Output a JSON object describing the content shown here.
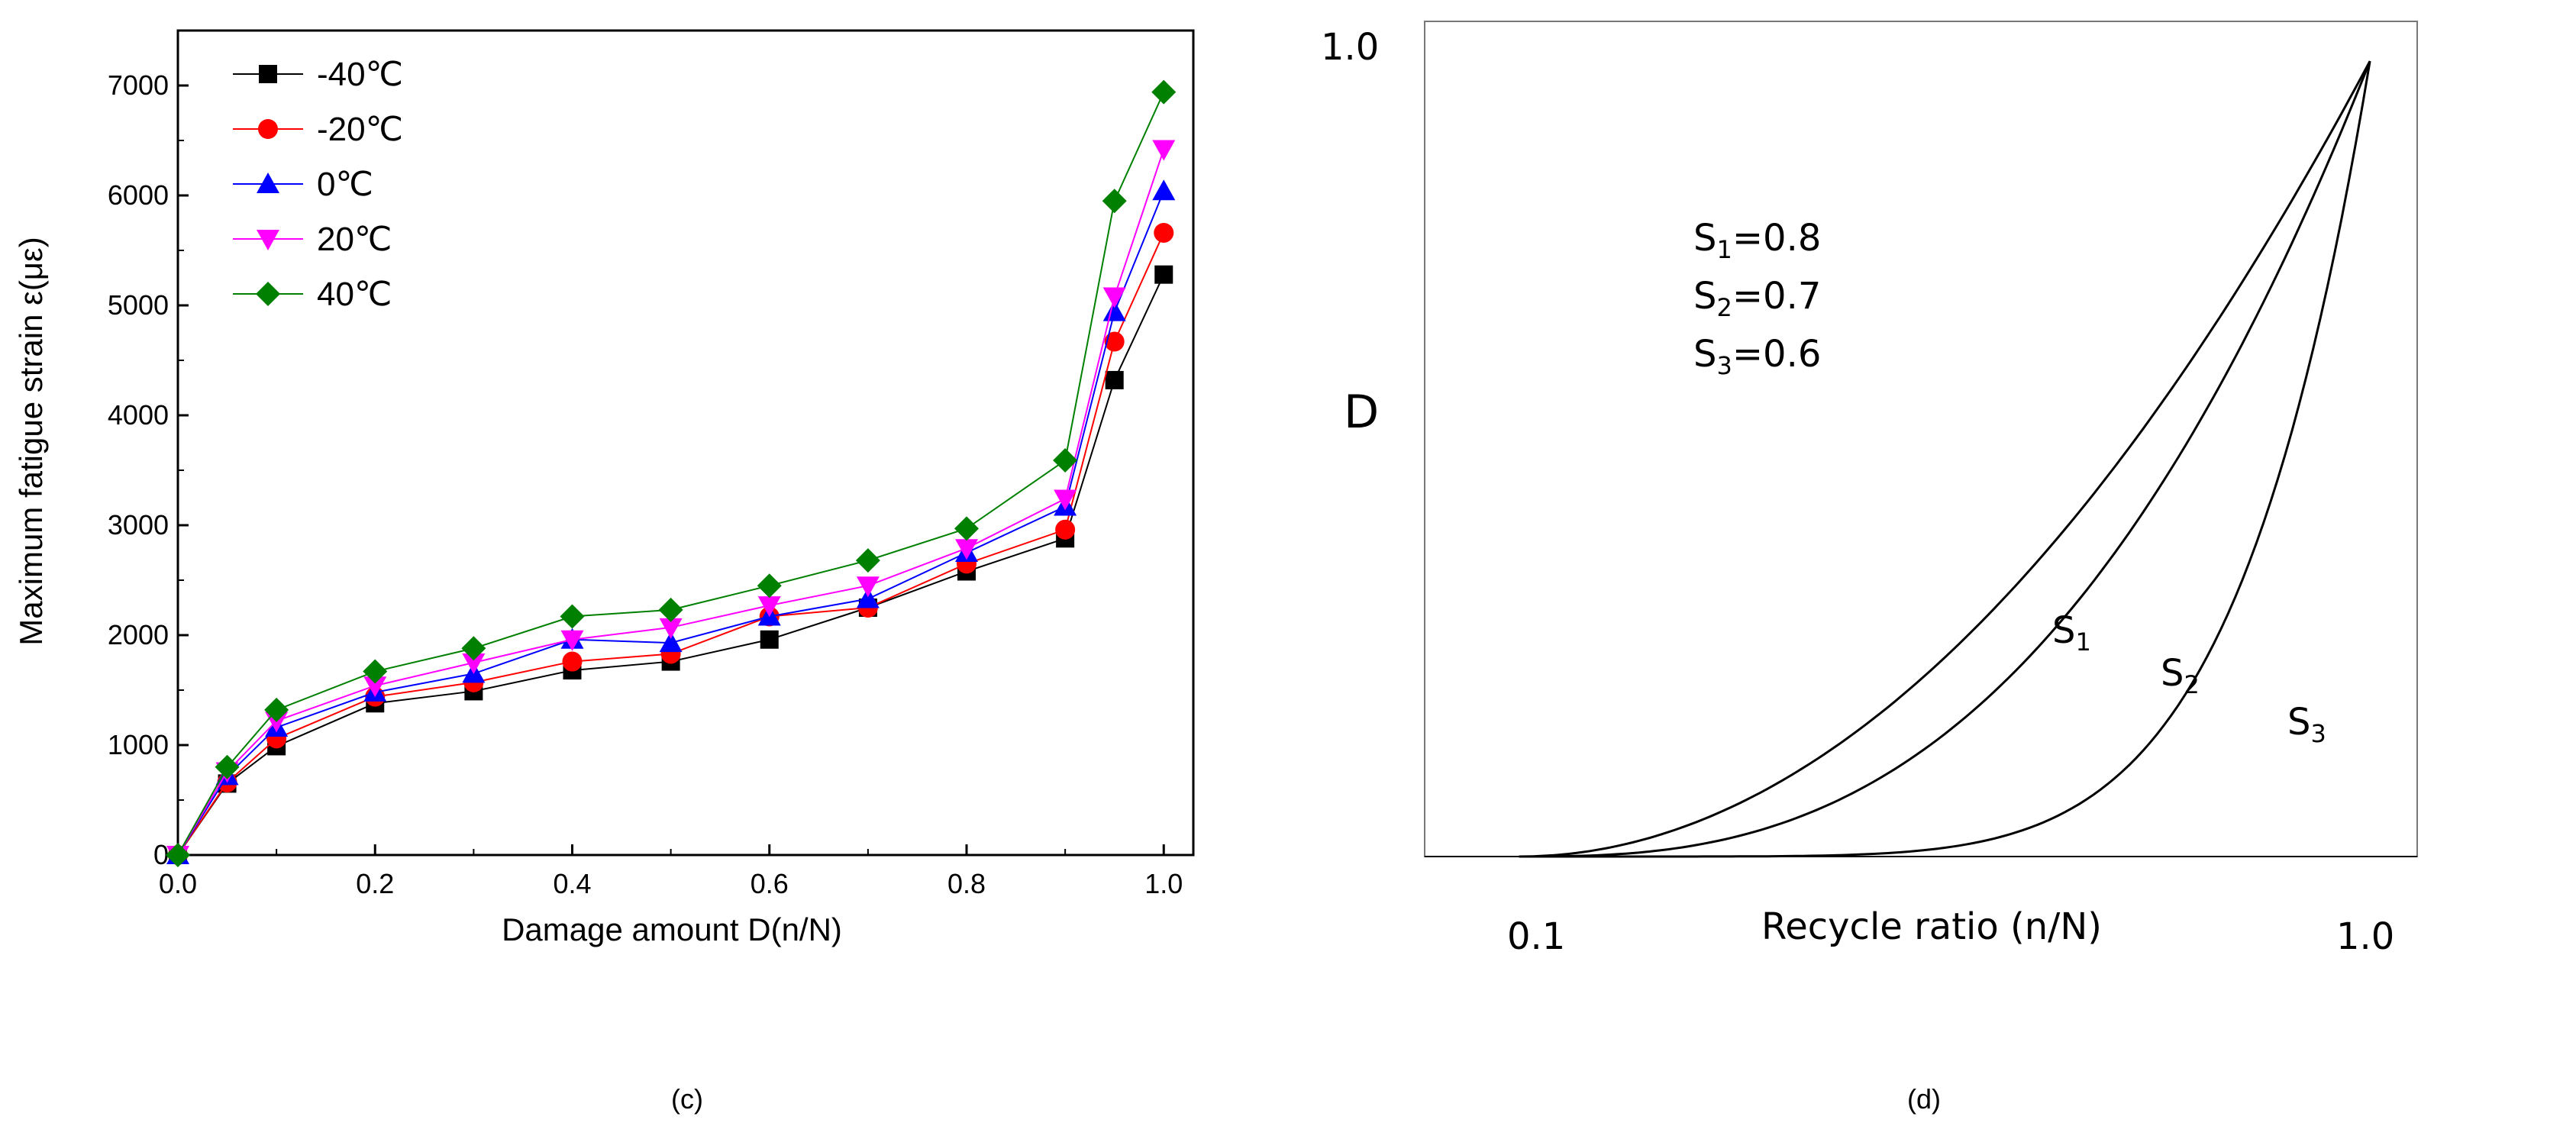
{
  "chart_data": [
    {
      "panel": "c",
      "type": "line",
      "title": "",
      "xlabel": "Damage amount D(n/N)",
      "ylabel": "Maximum fatigue strain ε(με)",
      "caption": "(c)",
      "xlim": [
        0.0,
        1.03
      ],
      "ylim": [
        0,
        7500
      ],
      "xticks": [
        0.0,
        0.2,
        0.4,
        0.6,
        0.8,
        1.0
      ],
      "xtick_labels": [
        "0.0",
        "0.2",
        "0.4",
        "0.6",
        "0.8",
        "1.0"
      ],
      "yticks": [
        0,
        1000,
        2000,
        3000,
        4000,
        5000,
        6000,
        7000
      ],
      "ytick_labels": [
        "0",
        "1000",
        "2000",
        "3000",
        "4000",
        "5000",
        "6000",
        "7000"
      ],
      "legend_position": "top-left",
      "x": [
        0.0,
        0.05,
        0.1,
        0.2,
        0.3,
        0.4,
        0.5,
        0.6,
        0.7,
        0.8,
        0.9,
        0.95,
        1.0
      ],
      "series": [
        {
          "name": "-40℃",
          "color": "#000000",
          "marker": "square",
          "values": [
            0,
            650,
            990,
            1380,
            1490,
            1680,
            1760,
            1960,
            2250,
            2580,
            2880,
            4320,
            5280
          ]
        },
        {
          "name": "-20℃",
          "color": "#ff0000",
          "marker": "circle",
          "values": [
            0,
            660,
            1060,
            1440,
            1570,
            1760,
            1830,
            2170,
            2250,
            2650,
            2960,
            4670,
            5660
          ]
        },
        {
          "name": "0℃",
          "color": "#0000ff",
          "marker": "triangle-up",
          "values": [
            0,
            720,
            1160,
            1480,
            1650,
            1960,
            1930,
            2170,
            2330,
            2750,
            3170,
            4940,
            6040
          ]
        },
        {
          "name": "20℃",
          "color": "#ff00ff",
          "marker": "triangle-down",
          "values": [
            0,
            760,
            1220,
            1540,
            1750,
            1960,
            2070,
            2270,
            2450,
            2790,
            3240,
            5080,
            6420
          ]
        },
        {
          "name": "40℃",
          "color": "#008000",
          "marker": "diamond",
          "values": [
            0,
            800,
            1320,
            1670,
            1880,
            2170,
            2230,
            2450,
            2680,
            2970,
            3590,
            5950,
            6940
          ]
        }
      ]
    },
    {
      "panel": "d",
      "type": "line",
      "title": "",
      "xlabel": "Recycle ratio (n/N)",
      "ylabel": "D",
      "caption": "(d)",
      "xlim": [
        0.0,
        1.05
      ],
      "ylim": [
        0.0,
        1.05
      ],
      "xtick_labels": [
        "0.1",
        "1.0"
      ],
      "ytick_labels": [
        "1.0"
      ],
      "x_start": 0.1,
      "x_end": 1.0,
      "annotations": {
        "s1": {
          "label": "S",
          "sub": "1",
          "value": "=0.8"
        },
        "s2": {
          "label": "S",
          "sub": "2",
          "value": "=0.7"
        },
        "s3": {
          "label": "S",
          "sub": "3",
          "value": "=0.6"
        }
      },
      "series": [
        {
          "name": "S",
          "sub": "1",
          "exponent": 2.0
        },
        {
          "name": "S",
          "sub": "2",
          "exponent": 2.7
        },
        {
          "name": "S",
          "sub": "3",
          "exponent": 6.5
        }
      ]
    }
  ]
}
